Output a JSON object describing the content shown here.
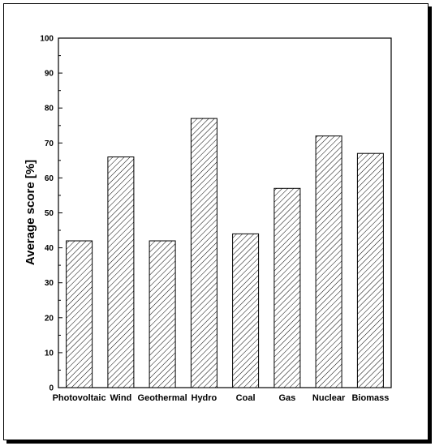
{
  "chart_data": {
    "type": "bar",
    "title": "",
    "xlabel": "",
    "ylabel": "Average score [%]",
    "ylim": [
      0,
      100
    ],
    "yticks": [
      0,
      10,
      20,
      30,
      40,
      50,
      60,
      70,
      80,
      90,
      100
    ],
    "categories": [
      "Photovoltaic",
      "Wind",
      "Geothermal",
      "Hydro",
      "Coal",
      "Gas",
      "Nuclear",
      "Biomass"
    ],
    "values": [
      42,
      66,
      42,
      77,
      44,
      57,
      72,
      67
    ],
    "bar_fill": "diagonal-hatch",
    "bar_color": "#000000",
    "grid": false,
    "legend": "none"
  }
}
